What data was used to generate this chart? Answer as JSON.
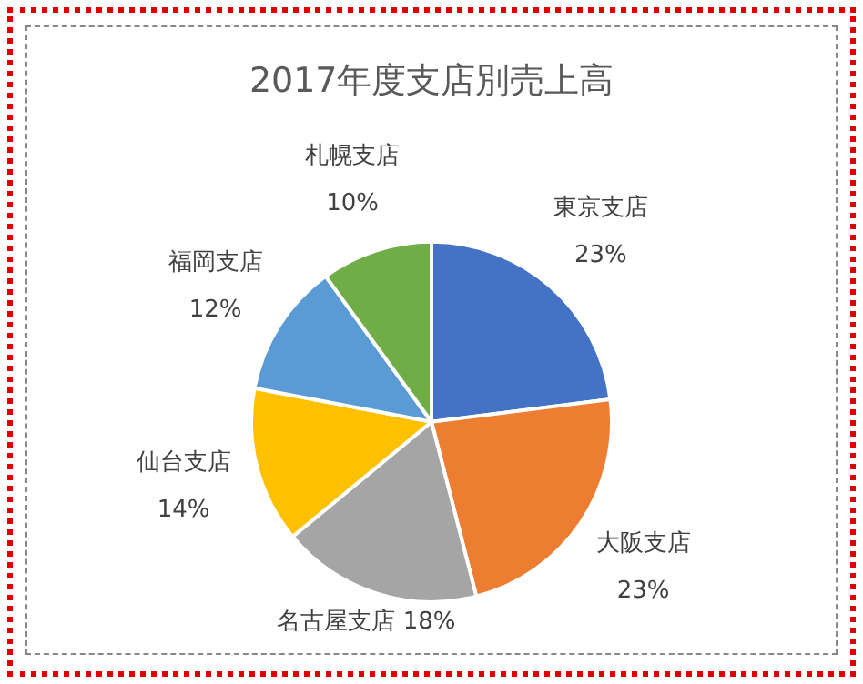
{
  "chart_data": {
    "type": "pie",
    "title": "2017年度支店別売上高",
    "categories": [
      "東京支店",
      "大阪支店",
      "名古屋支店",
      "仙台支店",
      "福岡支店",
      "札幌支店"
    ],
    "values": [
      23,
      23,
      18,
      14,
      12,
      10
    ],
    "value_labels": [
      "23%",
      "23%",
      "18%",
      "14%",
      "12%",
      "10%"
    ],
    "colors": [
      "#4472c4",
      "#ed7d31",
      "#a5a5a5",
      "#ffc000",
      "#5b9bd5",
      "#70ad47"
    ],
    "legend": false
  }
}
